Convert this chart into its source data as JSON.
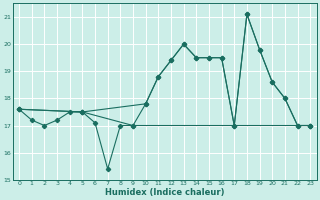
{
  "xlabel": "Humidex (Indice chaleur)",
  "xlim": [
    -0.5,
    23.5
  ],
  "ylim": [
    15,
    21.5
  ],
  "yticks": [
    15,
    16,
    17,
    18,
    19,
    20,
    21
  ],
  "xticks": [
    0,
    1,
    2,
    3,
    4,
    5,
    6,
    7,
    8,
    9,
    10,
    11,
    12,
    13,
    14,
    15,
    16,
    17,
    18,
    19,
    20,
    21,
    22,
    23
  ],
  "bg_color": "#cceee8",
  "line_color": "#1a6e60",
  "grid_color": "#ffffff",
  "line1_x": [
    0,
    1,
    2,
    3,
    4,
    5,
    6,
    7,
    8,
    9,
    10,
    11,
    12,
    13,
    14,
    15,
    16,
    17,
    18,
    19,
    20,
    21,
    22,
    23
  ],
  "line1_y": [
    17.6,
    17.2,
    17.0,
    17.2,
    17.5,
    17.5,
    17.1,
    15.4,
    17.0,
    17.0,
    17.8,
    18.8,
    19.4,
    20.0,
    19.5,
    19.5,
    19.5,
    17.0,
    21.1,
    19.8,
    18.6,
    18.0,
    17.0,
    17.0
  ],
  "line2_x": [
    0,
    5,
    9,
    23
  ],
  "line2_y": [
    17.6,
    17.5,
    17.0,
    17.0
  ],
  "line3_x": [
    0,
    5,
    10,
    11,
    12,
    13,
    14,
    15,
    16,
    17,
    18,
    19,
    20,
    21,
    22,
    23
  ],
  "line3_y": [
    17.6,
    17.5,
    17.8,
    18.8,
    19.4,
    20.0,
    19.5,
    19.5,
    19.5,
    17.0,
    21.1,
    19.8,
    18.6,
    18.0,
    17.0,
    17.0
  ]
}
